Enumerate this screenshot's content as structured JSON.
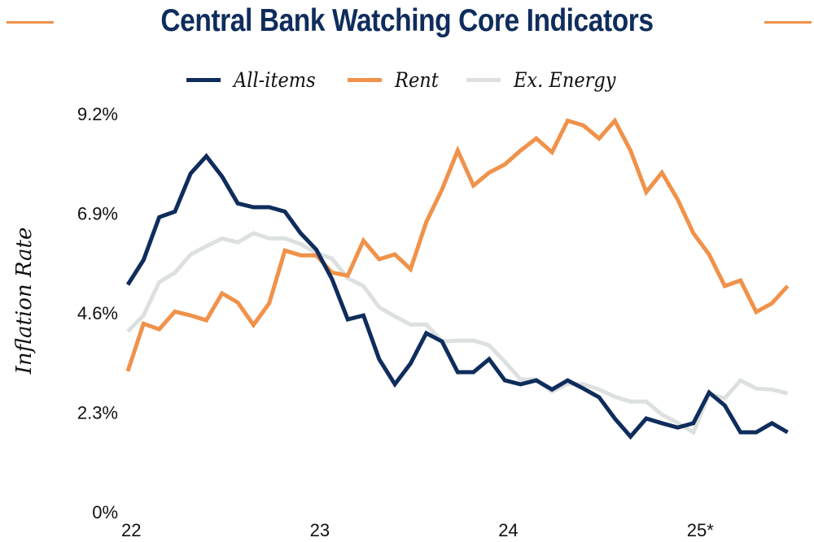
{
  "colors": {
    "title": "#0f2d5c",
    "accent_rule": "#f0924a",
    "all_items": "#0f2d5c",
    "rent": "#f0924a",
    "ex_energy": "#dde0e0"
  },
  "header": {
    "title": "Central Bank Watching Core Indicators"
  },
  "legend": [
    {
      "label": "All-items",
      "series": "all_items"
    },
    {
      "label": "Rent",
      "series": "rent"
    },
    {
      "label": "Ex. Energy",
      "series": "ex_energy"
    }
  ],
  "chart_data": {
    "type": "line",
    "title": "Central Bank Watching Core Indicators",
    "xlabel": "",
    "ylabel": "Inflation Rate",
    "ylim": [
      0,
      9.2
    ],
    "yticks": [
      0,
      2.3,
      4.6,
      6.9,
      9.2
    ],
    "ytick_labels": [
      "0%",
      "2.3%",
      "4.6%",
      "6.9%",
      "9.2%"
    ],
    "xtick_labels": [
      "22",
      "23",
      "24",
      "25*"
    ],
    "xtick_positions": [
      0,
      12,
      24,
      36
    ],
    "x_unit": "months since Jan 2022",
    "x": [
      0,
      1,
      2,
      3,
      4,
      5,
      6,
      7,
      8,
      9,
      10,
      11,
      12,
      13,
      14,
      15,
      16,
      17,
      18,
      19,
      20,
      21,
      22,
      23,
      24,
      25,
      26,
      27,
      28,
      29,
      30,
      31,
      32,
      33,
      34,
      35,
      36,
      37,
      38,
      39,
      40,
      41,
      42
    ],
    "grid": false,
    "legend_position": "top-center",
    "series": [
      {
        "name": "All-items",
        "key": "all_items",
        "values": [
          5.25,
          5.82,
          6.81,
          6.94,
          7.82,
          8.22,
          7.75,
          7.13,
          7.04,
          7.04,
          6.94,
          6.44,
          6.06,
          5.38,
          4.45,
          4.54,
          3.53,
          2.95,
          3.43,
          4.13,
          3.94,
          3.23,
          3.23,
          3.53,
          3.04,
          2.95,
          3.04,
          2.83,
          3.04,
          2.85,
          2.65,
          2.16,
          1.74,
          2.16,
          2.05,
          1.95,
          2.05,
          2.76,
          2.46,
          1.84,
          1.84,
          2.05,
          1.84
        ]
      },
      {
        "name": "Rent",
        "key": "rent",
        "values": [
          3.25,
          4.35,
          4.22,
          4.63,
          4.54,
          4.43,
          5.05,
          4.84,
          4.32,
          4.82,
          6.04,
          5.93,
          5.93,
          5.53,
          5.46,
          6.27,
          5.84,
          5.95,
          5.61,
          6.7,
          7.45,
          8.35,
          7.54,
          7.84,
          8.03,
          8.35,
          8.63,
          8.31,
          9.04,
          8.93,
          8.63,
          9.04,
          8.35,
          7.39,
          7.84,
          7.22,
          6.44,
          5.95,
          5.22,
          5.35,
          4.62,
          4.82,
          5.22
        ]
      },
      {
        "name": "Ex. Energy",
        "key": "ex_energy",
        "values": [
          4.17,
          4.54,
          5.31,
          5.53,
          5.95,
          6.14,
          6.32,
          6.23,
          6.44,
          6.32,
          6.32,
          6.19,
          5.99,
          5.85,
          5.4,
          5.22,
          4.73,
          4.52,
          4.33,
          4.33,
          3.94,
          3.96,
          3.96,
          3.85,
          3.47,
          3.06,
          3.06,
          2.78,
          2.96,
          2.95,
          2.83,
          2.66,
          2.55,
          2.55,
          2.25,
          2.06,
          1.84,
          2.72,
          2.63,
          3.04,
          2.85,
          2.83,
          2.74
        ]
      }
    ]
  }
}
